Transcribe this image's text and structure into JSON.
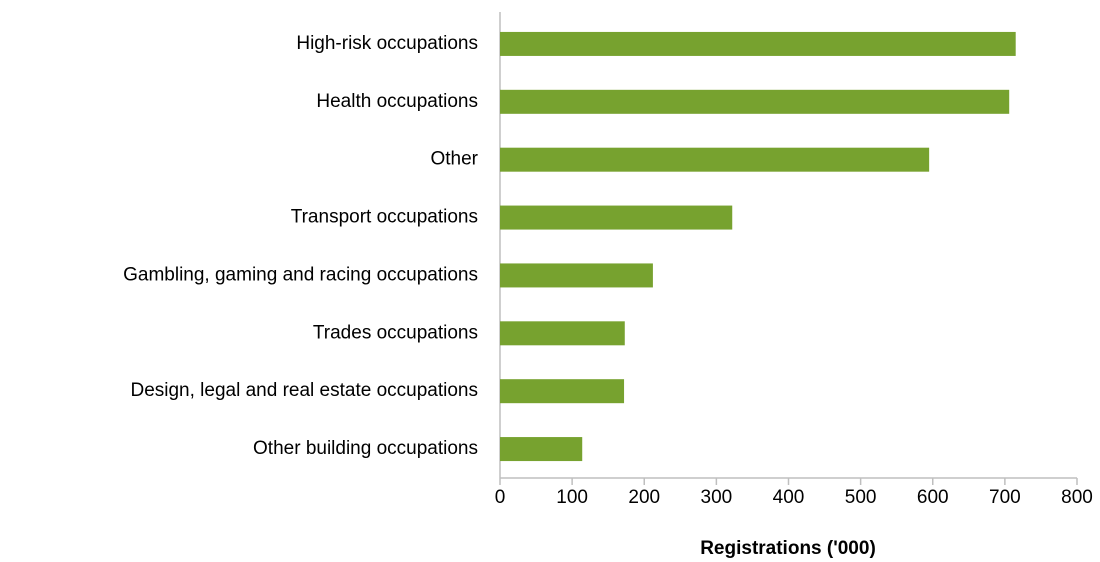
{
  "chart_data": {
    "type": "bar",
    "orientation": "horizontal",
    "xlabel": "Registrations ('000)",
    "categories": [
      "High-risk occupations",
      "Health occupations",
      "Other",
      "Transport occupations",
      "Gambling, gaming and racing occupations",
      "Trades occupations",
      "Design, legal and real estate occupations",
      "Other building occupations"
    ],
    "values": [
      715,
      706,
      595,
      322,
      212,
      173,
      172,
      114
    ],
    "color": "#77a22f",
    "xlim": [
      0,
      800
    ],
    "xticks": [
      0,
      100,
      200,
      300,
      400,
      500,
      600,
      700,
      800
    ],
    "grid": false
  }
}
